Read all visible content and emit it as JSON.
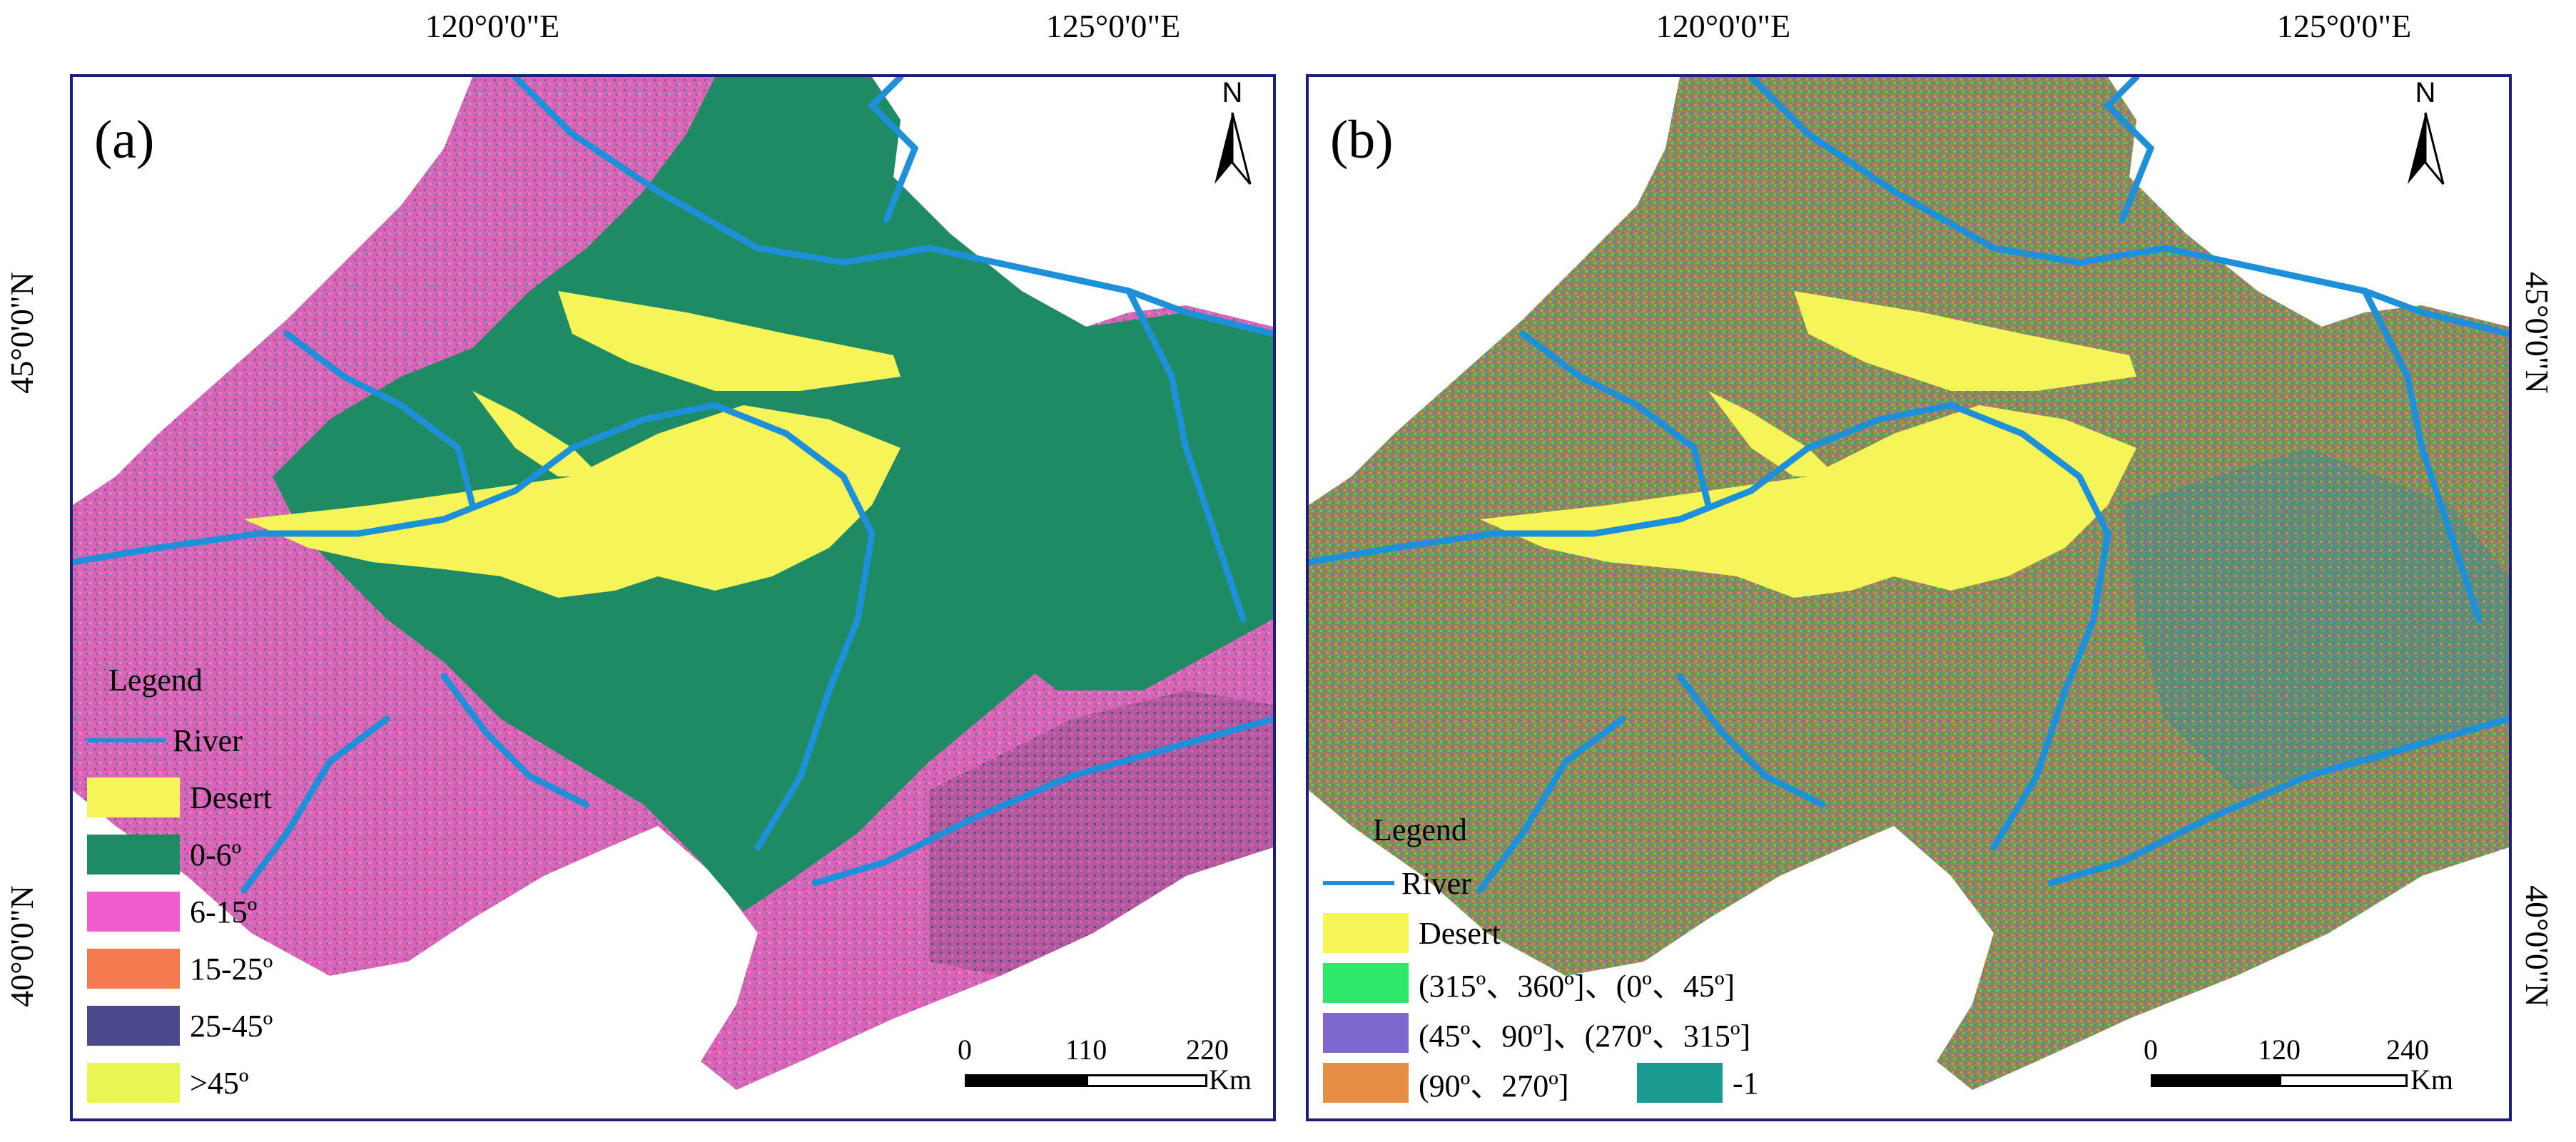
{
  "panels": [
    {
      "label": "(a)",
      "north": "N",
      "legend": {
        "title": "Legend",
        "river": "River",
        "items": [
          {
            "label": "Desert",
            "color": "#f5f55a"
          },
          {
            "label": "0-6º",
            "color": "#1f8b65"
          },
          {
            "label": "6-15º",
            "color": "#f25ccf"
          },
          {
            "label": "15-25º",
            "color": "#f57a50"
          },
          {
            "label": "25-45º",
            "color": "#4a4a8c"
          },
          {
            "label": ">45º",
            "color": "#e9f552"
          }
        ]
      },
      "scale": {
        "ticks": [
          "0",
          "110",
          "220"
        ],
        "unit": "Km"
      }
    },
    {
      "label": "(b)",
      "north": "N",
      "legend": {
        "title": "Legend",
        "river": "River",
        "desert": {
          "label": "Desert",
          "color": "#f5f55a"
        },
        "items": [
          {
            "label": "(315º、360º]、(0º、45º]",
            "color": "#2ee86a"
          },
          {
            "label": "(45º、90º]、(270º、315º]",
            "color": "#7f67d0"
          },
          {
            "label": "(90º、270º]",
            "color": "#e48f45"
          },
          {
            "label": "-1",
            "color": "#1b9b8f"
          }
        ]
      },
      "scale": {
        "ticks": [
          "0",
          "120",
          "240"
        ],
        "unit": "Km"
      }
    }
  ],
  "axes": {
    "lon": [
      "120°0'0\"E",
      "125°0'0\"E"
    ],
    "lat": [
      "45°0'0\"N",
      "40°0'0\"N"
    ]
  },
  "colors": {
    "river": "#1e90d9",
    "frame": "#1c1c7a",
    "slope_base": "#c85fa8",
    "aspect_base": "#8d8a55"
  }
}
